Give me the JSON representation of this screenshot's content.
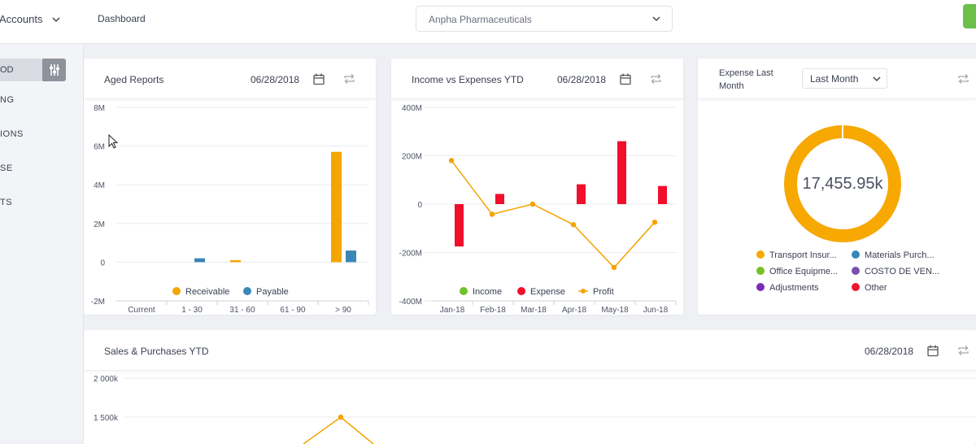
{
  "sidebar": {
    "account_label": "Accounts",
    "active_item": "OD",
    "items": [
      "NG",
      "IONS",
      "SE",
      "TS"
    ]
  },
  "topbar": {
    "breadcrumb": "Dashboard",
    "company": "Anpha Pharmaceuticals"
  },
  "colors": {
    "receivable": "#f5a500",
    "payable": "#3a86b7",
    "income": "#6ec12a",
    "expense": "#f20f2c",
    "profit": "#f5a300",
    "transport": "#f7a801",
    "materials": "#3686bd",
    "office": "#76c025",
    "costo": "#7b4fb0",
    "adjustments": "#7a2bb7",
    "other": "#ee1530"
  },
  "aged_reports": {
    "title": "Aged Reports",
    "date": "06/28/2018"
  },
  "income_expenses": {
    "title": "Income vs Expenses YTD",
    "date": "06/28/2018"
  },
  "expense_last_month": {
    "title_line1": "Expense Last",
    "title_line2": "Month",
    "period": "Last Month",
    "center_value": "17,455.95k",
    "legend": [
      {
        "label": "Transport Insur...",
        "color_key": "transport"
      },
      {
        "label": "Materials Purch...",
        "color_key": "materials"
      },
      {
        "label": "Office Equipme...",
        "color_key": "office"
      },
      {
        "label": "COSTO DE VEN...",
        "color_key": "costo"
      },
      {
        "label": "Adjustments",
        "color_key": "adjustments"
      },
      {
        "label": "Other",
        "color_key": "other"
      }
    ]
  },
  "sales_purchases": {
    "title": "Sales & Purchases YTD",
    "date": "06/28/2018",
    "y_ticks": [
      "2 000k",
      "1 500k"
    ]
  },
  "chart_data": [
    {
      "id": "aged",
      "type": "bar",
      "categories": [
        "Current",
        "1 - 30",
        "31 - 60",
        "61 - 90",
        "> 90"
      ],
      "series": [
        {
          "name": "Receivable",
          "values": [
            0,
            0,
            0.1,
            0,
            5.7
          ]
        },
        {
          "name": "Payable",
          "values": [
            0,
            0.2,
            0,
            0,
            0.6
          ]
        }
      ],
      "y_ticks": [
        "8M",
        "6M",
        "4M",
        "2M",
        "0",
        "-2M"
      ],
      "ylim": [
        -2,
        8
      ],
      "legend_position": "bottom"
    },
    {
      "id": "income",
      "type": "bar",
      "categories": [
        "Jan-18",
        "Feb-18",
        "Mar-18",
        "Apr-18",
        "May-18",
        "Jun-18"
      ],
      "series": [
        {
          "name": "Income",
          "values": [
            0,
            0,
            0,
            0,
            0,
            0
          ]
        },
        {
          "name": "Expense",
          "values": [
            -175,
            42,
            0,
            82,
            260,
            75
          ]
        },
        {
          "name": "Profit",
          "values": [
            180,
            -42,
            0,
            -85,
            -262,
            -75
          ]
        }
      ],
      "y_ticks": [
        "400M",
        "200M",
        "0",
        "-200M",
        "-400M"
      ],
      "ylim": [
        -400,
        400
      ],
      "legend_position": "bottom"
    },
    {
      "id": "expense_pie",
      "type": "pie",
      "categories": [
        "Transport Insur...",
        "Materials Purch...",
        "Office Equipme...",
        "COSTO DE VEN...",
        "Adjustments",
        "Other"
      ],
      "values": [
        99,
        0.5,
        0,
        0,
        0,
        0.5
      ]
    },
    {
      "id": "sales",
      "type": "line",
      "y_ticks": [
        "2 000k",
        "1 500k"
      ],
      "points_visible": [
        {
          "y": 1500
        }
      ]
    }
  ]
}
